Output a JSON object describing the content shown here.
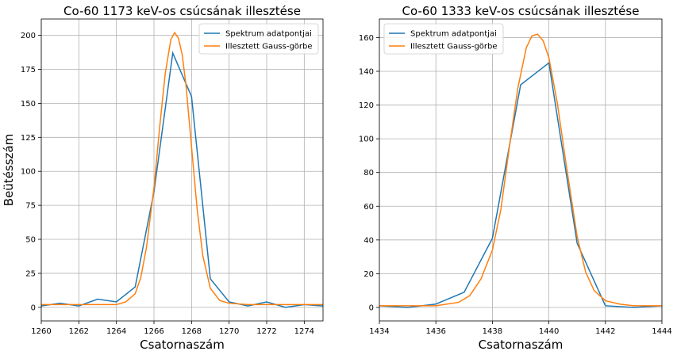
{
  "chart_data": [
    {
      "type": "line",
      "title": "Co-60 1173 keV-os csúcsának illesztése",
      "xlabel": "Csatornaszám",
      "ylabel": "Beütésszám",
      "xlim": [
        1260,
        1275
      ],
      "ylim": [
        -10,
        212
      ],
      "xticks": [
        1260,
        1262,
        1264,
        1266,
        1268,
        1270,
        1272,
        1274
      ],
      "yticks": [
        0,
        25,
        50,
        75,
        100,
        125,
        150,
        175,
        200
      ],
      "grid": true,
      "legend": "top-right",
      "series": [
        {
          "name": "Spektrum adatpontjai",
          "color": "#1f77b4",
          "x": [
            1260,
            1261,
            1262,
            1263,
            1264,
            1265,
            1266,
            1267,
            1268,
            1269,
            1270,
            1271,
            1272,
            1273,
            1274,
            1275
          ],
          "y": [
            1,
            3,
            1,
            6,
            4,
            15,
            85,
            187,
            155,
            21,
            4,
            1,
            4,
            0,
            2,
            1
          ]
        },
        {
          "name": "Illesztett Gauss-görbe",
          "color": "#ff7f0e",
          "x": [
            1260,
            1263,
            1264,
            1264.5,
            1265,
            1265.3,
            1265.6,
            1266,
            1266.3,
            1266.6,
            1266.9,
            1267.1,
            1267.3,
            1267.5,
            1267.7,
            1268,
            1268.3,
            1268.6,
            1269,
            1269.5,
            1270,
            1271,
            1275
          ],
          "y": [
            2,
            2,
            2,
            4,
            10,
            22,
            44,
            88,
            132,
            172,
            197,
            202,
            198,
            186,
            164,
            118,
            72,
            38,
            14,
            5,
            3,
            2,
            2
          ]
        }
      ]
    },
    {
      "type": "line",
      "title": "Co-60 1333 keV-os csúcsának illesztése",
      "xlabel": "Csatornaszám",
      "ylabel": "",
      "xlim": [
        1434,
        1444
      ],
      "ylim": [
        -8,
        171
      ],
      "xticks": [
        1434,
        1436,
        1438,
        1440,
        1442,
        1444
      ],
      "yticks": [
        0,
        20,
        40,
        60,
        80,
        100,
        120,
        140,
        160
      ],
      "grid": true,
      "legend": "top-left",
      "series": [
        {
          "name": "Spektrum adatpontjai",
          "color": "#1f77b4",
          "x": [
            1434,
            1435,
            1436,
            1437,
            1438,
            1439,
            1440,
            1441,
            1442,
            1443,
            1444
          ],
          "y": [
            1,
            0,
            2,
            9,
            41,
            132,
            145,
            38,
            1,
            0,
            1
          ]
        },
        {
          "name": "Illesztett Gauss-görbe",
          "color": "#ff7f0e",
          "x": [
            1434,
            1436,
            1436.8,
            1437.2,
            1437.6,
            1438,
            1438.3,
            1438.6,
            1438.9,
            1439.2,
            1439.4,
            1439.6,
            1439.8,
            1440,
            1440.3,
            1440.6,
            1441,
            1441.3,
            1441.6,
            1442,
            1442.5,
            1443,
            1444
          ],
          "y": [
            1,
            1,
            3,
            7,
            17,
            34,
            58,
            95,
            130,
            154,
            161,
            162,
            158,
            148,
            121,
            86,
            42,
            21,
            10,
            4,
            2,
            1,
            1
          ]
        }
      ]
    }
  ]
}
